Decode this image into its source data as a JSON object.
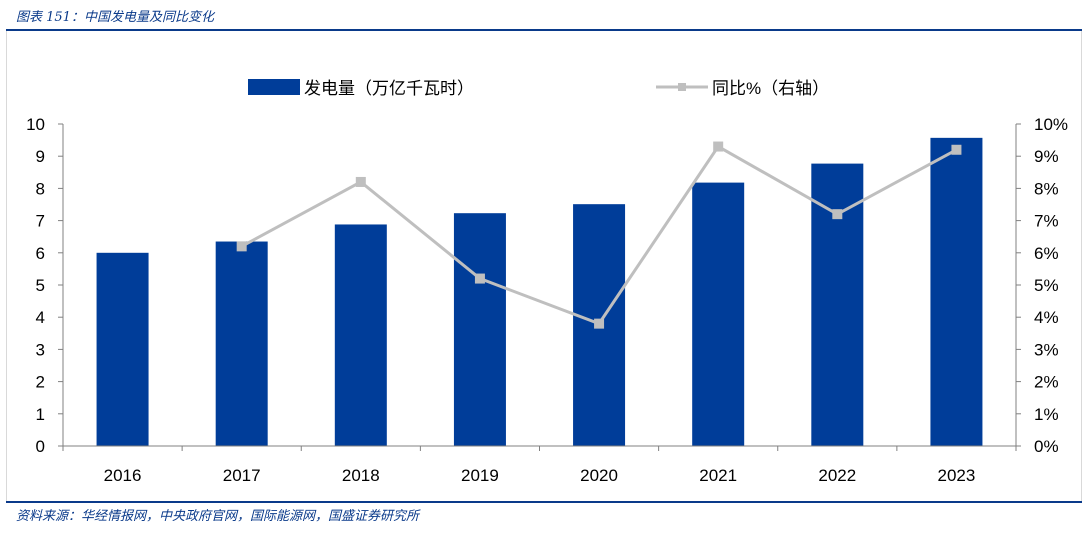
{
  "figure": {
    "title": "图表 151：中国发电量及同比变化",
    "source": "资料来源：华经情报网，中央政府官网，国际能源网，国盛证券研究所"
  },
  "colors": {
    "bar": "#003d99",
    "line": "#bfbfbf",
    "frame": "#0a3a8a"
  },
  "chart_data": {
    "type": "bar",
    "categories": [
      "2016",
      "2017",
      "2018",
      "2019",
      "2020",
      "2021",
      "2022",
      "2023"
    ],
    "series": [
      {
        "name": "发电量（万亿千瓦时）",
        "type": "bar",
        "axis": "left",
        "values": [
          6.0,
          6.35,
          6.88,
          7.23,
          7.51,
          8.18,
          8.77,
          9.57
        ]
      },
      {
        "name": "同比%（右轴）",
        "type": "line",
        "axis": "right",
        "values": [
          null,
          6.2,
          8.2,
          5.2,
          3.8,
          9.3,
          7.2,
          9.2
        ]
      }
    ],
    "ylim": [
      0,
      10
    ],
    "y2lim": [
      0,
      10
    ],
    "yticks": [
      "0",
      "1",
      "2",
      "3",
      "4",
      "5",
      "6",
      "7",
      "8",
      "9",
      "10"
    ],
    "y2ticks": [
      "0%",
      "1%",
      "2%",
      "3%",
      "4%",
      "5%",
      "6%",
      "7%",
      "8%",
      "9%",
      "10%"
    ],
    "legend": "top-center",
    "grid": false
  }
}
